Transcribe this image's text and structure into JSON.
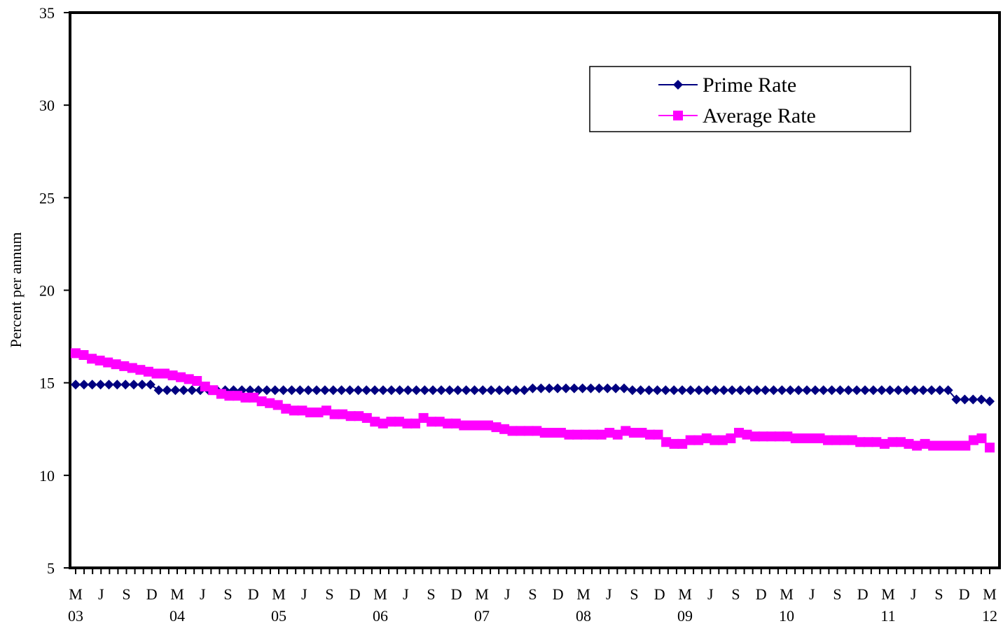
{
  "chart_data": {
    "type": "line",
    "title": "",
    "ylabel": "Percent per annum",
    "xlabel": "",
    "ylim": [
      5,
      35
    ],
    "yticks": [
      5,
      10,
      15,
      20,
      25,
      30,
      35
    ],
    "grid": false,
    "legend_position": "top-right",
    "x_month_labels": [
      "M",
      "J",
      "S",
      "D",
      "M",
      "J",
      "S",
      "D",
      "M",
      "J",
      "S",
      "D",
      "M",
      "J",
      "S",
      "D",
      "M",
      "J",
      "S",
      "D",
      "M",
      "J",
      "S",
      "D",
      "M",
      "J",
      "S",
      "D",
      "M",
      "J",
      "S",
      "D",
      "M",
      "J",
      "S",
      "D",
      "M"
    ],
    "x_year_labels": [
      "03",
      "04",
      "05",
      "06",
      "07",
      "08",
      "09",
      "10",
      "11",
      "12"
    ],
    "x_start": "2003-03",
    "x_end": "2012-03",
    "series": [
      {
        "name": "Prime Rate",
        "color": "#000080",
        "marker": "diamond",
        "values": [
          14.9,
          14.9,
          14.9,
          14.9,
          14.9,
          14.9,
          14.9,
          14.9,
          14.9,
          14.9,
          14.6,
          14.6,
          14.6,
          14.6,
          14.6,
          14.6,
          14.6,
          14.6,
          14.6,
          14.6,
          14.6,
          14.6,
          14.6,
          14.6,
          14.6,
          14.6,
          14.6,
          14.6,
          14.6,
          14.6,
          14.6,
          14.6,
          14.6,
          14.6,
          14.6,
          14.6,
          14.6,
          14.6,
          14.6,
          14.6,
          14.6,
          14.6,
          14.6,
          14.6,
          14.6,
          14.6,
          14.6,
          14.6,
          14.6,
          14.6,
          14.6,
          14.6,
          14.6,
          14.6,
          14.6,
          14.7,
          14.7,
          14.7,
          14.7,
          14.7,
          14.7,
          14.7,
          14.7,
          14.7,
          14.7,
          14.7,
          14.7,
          14.6,
          14.6,
          14.6,
          14.6,
          14.6,
          14.6,
          14.6,
          14.6,
          14.6,
          14.6,
          14.6,
          14.6,
          14.6,
          14.6,
          14.6,
          14.6,
          14.6,
          14.6,
          14.6,
          14.6,
          14.6,
          14.6,
          14.6,
          14.6,
          14.6,
          14.6,
          14.6,
          14.6,
          14.6,
          14.6,
          14.6,
          14.6,
          14.6,
          14.6,
          14.6,
          14.6,
          14.6,
          14.6,
          14.6,
          14.1,
          14.1,
          14.1,
          14.1,
          14.0
        ]
      },
      {
        "name": "Average Rate",
        "color": "#FF00FF",
        "marker": "square",
        "values": [
          16.6,
          16.5,
          16.3,
          16.2,
          16.1,
          16.0,
          15.9,
          15.8,
          15.7,
          15.6,
          15.5,
          15.5,
          15.4,
          15.3,
          15.2,
          15.1,
          14.8,
          14.6,
          14.4,
          14.3,
          14.3,
          14.2,
          14.2,
          14.0,
          13.9,
          13.8,
          13.6,
          13.5,
          13.5,
          13.4,
          13.4,
          13.5,
          13.3,
          13.3,
          13.2,
          13.2,
          13.1,
          12.9,
          12.8,
          12.9,
          12.9,
          12.8,
          12.8,
          13.1,
          12.9,
          12.9,
          12.8,
          12.8,
          12.7,
          12.7,
          12.7,
          12.7,
          12.6,
          12.5,
          12.4,
          12.4,
          12.4,
          12.4,
          12.3,
          12.3,
          12.3,
          12.2,
          12.2,
          12.2,
          12.2,
          12.2,
          12.3,
          12.2,
          12.4,
          12.3,
          12.3,
          12.2,
          12.2,
          11.8,
          11.7,
          11.7,
          11.9,
          11.9,
          12.0,
          11.9,
          11.9,
          12.0,
          12.3,
          12.2,
          12.1,
          12.1,
          12.1,
          12.1,
          12.1,
          12.0,
          12.0,
          12.0,
          12.0,
          11.9,
          11.9,
          11.9,
          11.9,
          11.8,
          11.8,
          11.8,
          11.7,
          11.8,
          11.8,
          11.7,
          11.6,
          11.7,
          11.6,
          11.6,
          11.6,
          11.6,
          11.6,
          11.9,
          12.0,
          11.5
        ]
      }
    ]
  }
}
